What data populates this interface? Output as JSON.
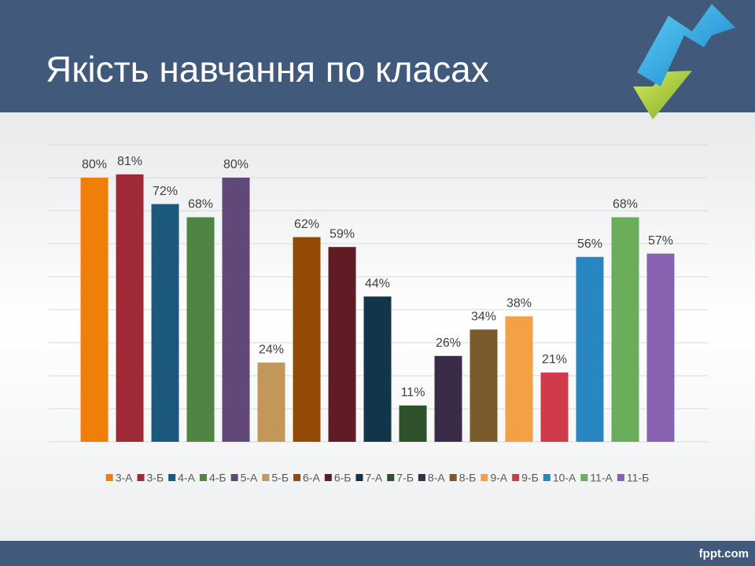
{
  "chart_data": {
    "type": "bar",
    "title": "Якість навчання по класах",
    "footer": "fppt.com",
    "ylim": [
      0,
      90
    ],
    "yticks": [
      0,
      10,
      20,
      30,
      40,
      50,
      60,
      70,
      80,
      90
    ],
    "grid": true,
    "legend": "bottom",
    "series": [
      {
        "name": "3-А",
        "color": "#f07f09",
        "values": [
          80
        ],
        "value_labels": [
          "80%"
        ]
      },
      {
        "name": "3-Б",
        "color": "#9f2936",
        "values": [
          81
        ],
        "value_labels": [
          "81%"
        ]
      },
      {
        "name": "4-А",
        "color": "#1b587c",
        "values": [
          72
        ],
        "value_labels": [
          "72%"
        ]
      },
      {
        "name": "4-Б",
        "color": "#4e8542",
        "values": [
          68
        ],
        "value_labels": [
          "68%"
        ]
      },
      {
        "name": "5-А",
        "color": "#604878",
        "values": [
          80
        ],
        "value_labels": [
          "80%"
        ]
      },
      {
        "name": "5-Б",
        "color": "#c19859",
        "values": [
          24
        ],
        "value_labels": [
          "24%"
        ]
      },
      {
        "name": "6-А",
        "color": "#934a07",
        "values": [
          62
        ],
        "value_labels": [
          "62%"
        ]
      },
      {
        "name": "6-Б",
        "color": "#5f1c25",
        "values": [
          59
        ],
        "value_labels": [
          "59%"
        ]
      },
      {
        "name": "7-А",
        "color": "#12354c",
        "values": [
          44
        ],
        "value_labels": [
          "44%"
        ]
      },
      {
        "name": "7-Б",
        "color": "#2e502a",
        "values": [
          11
        ],
        "value_labels": [
          "11%"
        ]
      },
      {
        "name": "8-А",
        "color": "#3a2b49",
        "values": [
          26
        ],
        "value_labels": [
          "26%"
        ]
      },
      {
        "name": "8-Б",
        "color": "#7a5b2e",
        "values": [
          34
        ],
        "value_labels": [
          "34%"
        ]
      },
      {
        "name": "9-А",
        "color": "#f4a045",
        "values": [
          38
        ],
        "value_labels": [
          "38%"
        ]
      },
      {
        "name": "9-Б",
        "color": "#d03a4b",
        "values": [
          21
        ],
        "value_labels": [
          "21%"
        ]
      },
      {
        "name": "10-А",
        "color": "#2a86c0",
        "values": [
          56
        ],
        "value_labels": [
          "56%"
        ]
      },
      {
        "name": "11-А",
        "color": "#6aad5b",
        "values": [
          68
        ],
        "value_labels": [
          "68%"
        ]
      },
      {
        "name": "11-Б",
        "color": "#8762b0",
        "values": [
          57
        ],
        "value_labels": [
          "57%"
        ]
      }
    ]
  }
}
